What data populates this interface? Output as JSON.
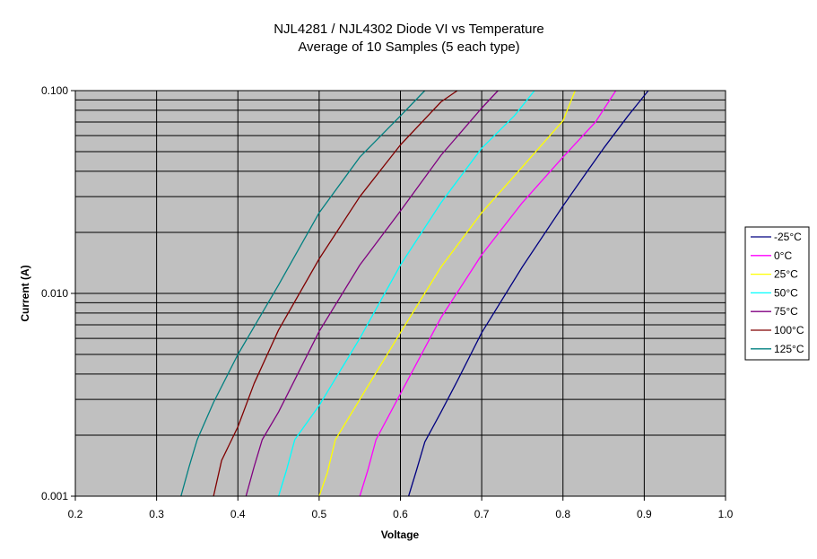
{
  "chart_data": {
    "type": "line",
    "title": "NJL4281 /  NJL4302 Diode VI vs Temperature",
    "subtitle": "Average of 10 Samples (5 each type)",
    "xlabel": "Voltage",
    "ylabel": "Current (A)",
    "xlim": [
      0.2,
      1.0
    ],
    "ylim": [
      0.001,
      0.1
    ],
    "yscale": "log",
    "x_ticks": [
      "0.2",
      "0.3",
      "0.4",
      "0.5",
      "0.6",
      "0.7",
      "0.8",
      "0.9",
      "1.0"
    ],
    "y_ticks": [
      "0.001",
      "0.010",
      "0.100"
    ],
    "grid": true,
    "plot_background": "#c0c0c0",
    "legend_position": "right",
    "series": [
      {
        "name": "-25°C",
        "color": "#000080",
        "points": [
          [
            0.61,
            0.001
          ],
          [
            0.62,
            0.00135
          ],
          [
            0.63,
            0.00185
          ],
          [
            0.65,
            0.0026
          ],
          [
            0.67,
            0.0037
          ],
          [
            0.7,
            0.0064
          ],
          [
            0.75,
            0.0135
          ],
          [
            0.8,
            0.027
          ],
          [
            0.83,
            0.04
          ],
          [
            0.85,
            0.052
          ],
          [
            0.88,
            0.075
          ],
          [
            0.905,
            0.1
          ]
        ]
      },
      {
        "name": "0°C",
        "color": "#ff00ff",
        "points": [
          [
            0.55,
            0.001
          ],
          [
            0.56,
            0.00135
          ],
          [
            0.57,
            0.0019
          ],
          [
            0.6,
            0.0032
          ],
          [
            0.65,
            0.0076
          ],
          [
            0.7,
            0.0155
          ],
          [
            0.75,
            0.028
          ],
          [
            0.8,
            0.047
          ],
          [
            0.84,
            0.07
          ],
          [
            0.865,
            0.1
          ]
        ]
      },
      {
        "name": "25°C",
        "color": "#ffff00",
        "points": [
          [
            0.5,
            0.001
          ],
          [
            0.51,
            0.0013
          ],
          [
            0.52,
            0.0019
          ],
          [
            0.55,
            0.003
          ],
          [
            0.6,
            0.0064
          ],
          [
            0.65,
            0.0135
          ],
          [
            0.7,
            0.025
          ],
          [
            0.75,
            0.042
          ],
          [
            0.8,
            0.071
          ],
          [
            0.815,
            0.1
          ]
        ]
      },
      {
        "name": "50°C",
        "color": "#00ffff",
        "points": [
          [
            0.45,
            0.001
          ],
          [
            0.46,
            0.00135
          ],
          [
            0.47,
            0.0019
          ],
          [
            0.5,
            0.0028
          ],
          [
            0.55,
            0.006
          ],
          [
            0.6,
            0.0138
          ],
          [
            0.65,
            0.028
          ],
          [
            0.7,
            0.052
          ],
          [
            0.74,
            0.075
          ],
          [
            0.765,
            0.1
          ]
        ]
      },
      {
        "name": "75°C",
        "color": "#800080",
        "points": [
          [
            0.41,
            0.001
          ],
          [
            0.42,
            0.0014
          ],
          [
            0.43,
            0.0019
          ],
          [
            0.45,
            0.0026
          ],
          [
            0.5,
            0.0065
          ],
          [
            0.55,
            0.0138
          ],
          [
            0.6,
            0.0255
          ],
          [
            0.65,
            0.048
          ],
          [
            0.7,
            0.082
          ],
          [
            0.72,
            0.1
          ]
        ]
      },
      {
        "name": "100°C",
        "color": "#800000",
        "points": [
          [
            0.37,
            0.001
          ],
          [
            0.38,
            0.0015
          ],
          [
            0.4,
            0.0022
          ],
          [
            0.42,
            0.0036
          ],
          [
            0.45,
            0.0066
          ],
          [
            0.5,
            0.0148
          ],
          [
            0.55,
            0.03
          ],
          [
            0.6,
            0.054
          ],
          [
            0.65,
            0.088
          ],
          [
            0.67,
            0.1
          ]
        ]
      },
      {
        "name": "125°C",
        "color": "#008080",
        "points": [
          [
            0.33,
            0.001
          ],
          [
            0.34,
            0.0014
          ],
          [
            0.35,
            0.0019
          ],
          [
            0.37,
            0.0029
          ],
          [
            0.4,
            0.005
          ],
          [
            0.45,
            0.011
          ],
          [
            0.5,
            0.025
          ],
          [
            0.55,
            0.047
          ],
          [
            0.6,
            0.075
          ],
          [
            0.63,
            0.1
          ]
        ]
      }
    ]
  }
}
